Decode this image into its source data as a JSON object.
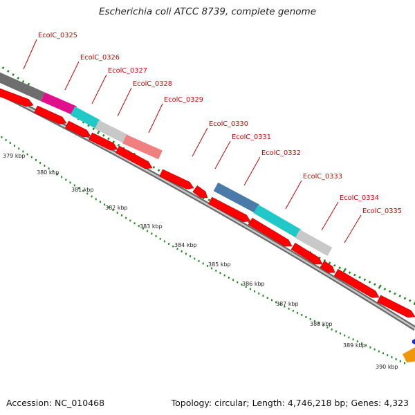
{
  "title": "Escherichia coli ATCC 8739, complete genome",
  "footer": {
    "accession": "Accession: NC_010468",
    "summary": "Topology: circular; Length: 4,746,218 bp; Genes: 4,323"
  },
  "colors": {
    "backbone": "#8a8a8a",
    "cds_forward": "#ff0000",
    "leader_line": "#cc0000",
    "tick": "#1e8a1e"
  },
  "gene_labels": [
    "EcolC_0325",
    "EcolC_0326",
    "EcolC_0327",
    "EcolC_0328",
    "EcolC_0329",
    "EcolC_0330",
    "EcolC_0331",
    "EcolC_0332",
    "EcolC_0333",
    "EcolC_0334",
    "EcolC_0335"
  ],
  "kbp_labels": [
    "379 kbp",
    "380 kbp",
    "381 kbp",
    "382 kbp",
    "383 kbp",
    "384 kbp",
    "385 kbp",
    "386 kbp",
    "387 kbp",
    "388 kbp",
    "389 kbp",
    "390 kbp"
  ],
  "cog_blocks": [
    {
      "color": "#6e6e6e"
    },
    {
      "color": "#e0108c"
    },
    {
      "color": "#20c8c8"
    },
    {
      "color": "#c8c8c8"
    },
    {
      "color": "#f08080"
    },
    {
      "color": "#4a7aaa"
    },
    {
      "color": "#20c8c8"
    },
    {
      "color": "#c8c8c8"
    }
  ]
}
